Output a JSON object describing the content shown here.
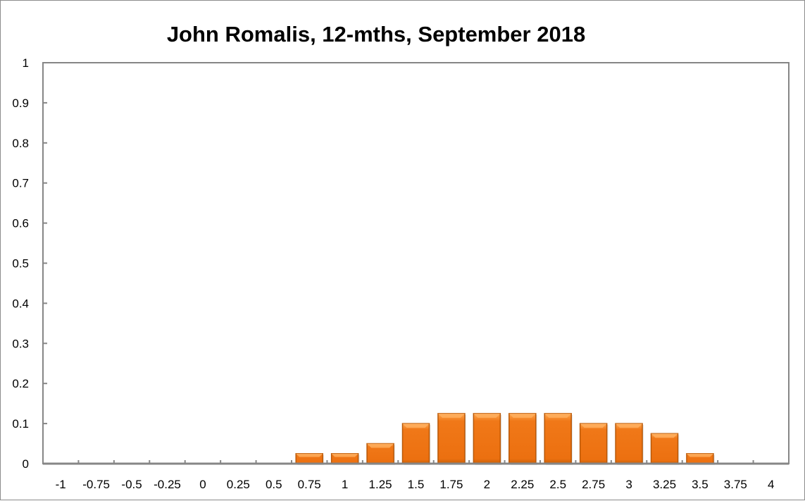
{
  "chart_data": {
    "type": "bar",
    "title": "John Romalis, 12-mths, September 2018",
    "xlabel": "",
    "ylabel": "",
    "categories": [
      "-1",
      "-0.75",
      "-0.5",
      "-0.25",
      "0",
      "0.25",
      "0.5",
      "0.75",
      "1",
      "1.25",
      "1.5",
      "1.75",
      "2",
      "2.25",
      "2.5",
      "2.75",
      "3",
      "3.25",
      "3.5",
      "3.75",
      "4"
    ],
    "values": [
      0,
      0,
      0,
      0,
      0,
      0,
      0,
      0.025,
      0.025,
      0.05,
      0.1,
      0.125,
      0.125,
      0.125,
      0.125,
      0.1,
      0.1,
      0.075,
      0.025,
      0,
      0
    ],
    "ylim": [
      0,
      1
    ],
    "yticks": [
      "0",
      "0.1",
      "0.2",
      "0.3",
      "0.4",
      "0.5",
      "0.6",
      "0.7",
      "0.8",
      "0.9",
      "1"
    ],
    "grid": false,
    "legend": "none",
    "colors": {
      "bar": "#f07818",
      "bar_light": "#ffb060",
      "bar_dark": "#b85808",
      "axis": "#868686"
    }
  }
}
